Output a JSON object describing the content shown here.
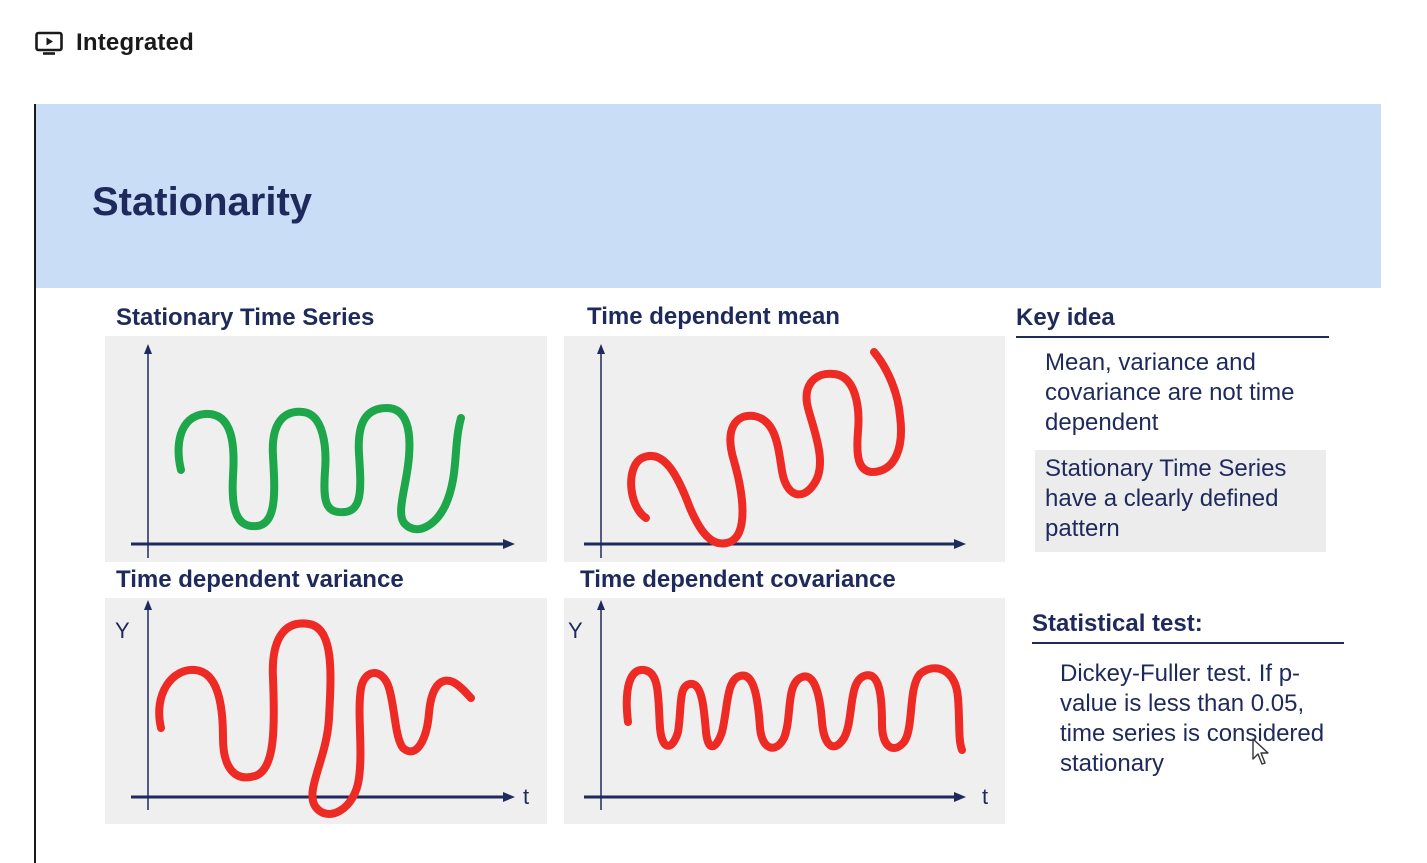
{
  "lesson": {
    "icon": "play-screen-icon",
    "title": "Integrated"
  },
  "slide": {
    "title": "Stationarity",
    "panels": {
      "stationary": {
        "title": "Stationary Time Series",
        "line_color": "#1ea64a"
      },
      "mean": {
        "title": "Time dependent mean",
        "line_color": "#ee2a24"
      },
      "variance": {
        "title": "Time dependent variance",
        "line_color": "#ee2a24",
        "y_label": "Y",
        "t_label": "t"
      },
      "covariance": {
        "title": "Time dependent covariance",
        "line_color": "#ee2a24",
        "y_label": "Y",
        "t_label": "t"
      }
    },
    "key_idea": {
      "heading": "Key idea",
      "text1": "Mean, variance and covariance are not time dependent",
      "text2": "Stationary Time Series have a clearly defined pattern"
    },
    "statistical_test": {
      "heading": "Statistical test:",
      "text": "Dickey-Fuller test. If p-value is less than 0.05, time series is considered stationary"
    }
  },
  "colors": {
    "header_band": "#c9ddf6",
    "title_text": "#1f2a5c",
    "axis": "#1f2a5c",
    "panel_bg": "#efefef"
  }
}
